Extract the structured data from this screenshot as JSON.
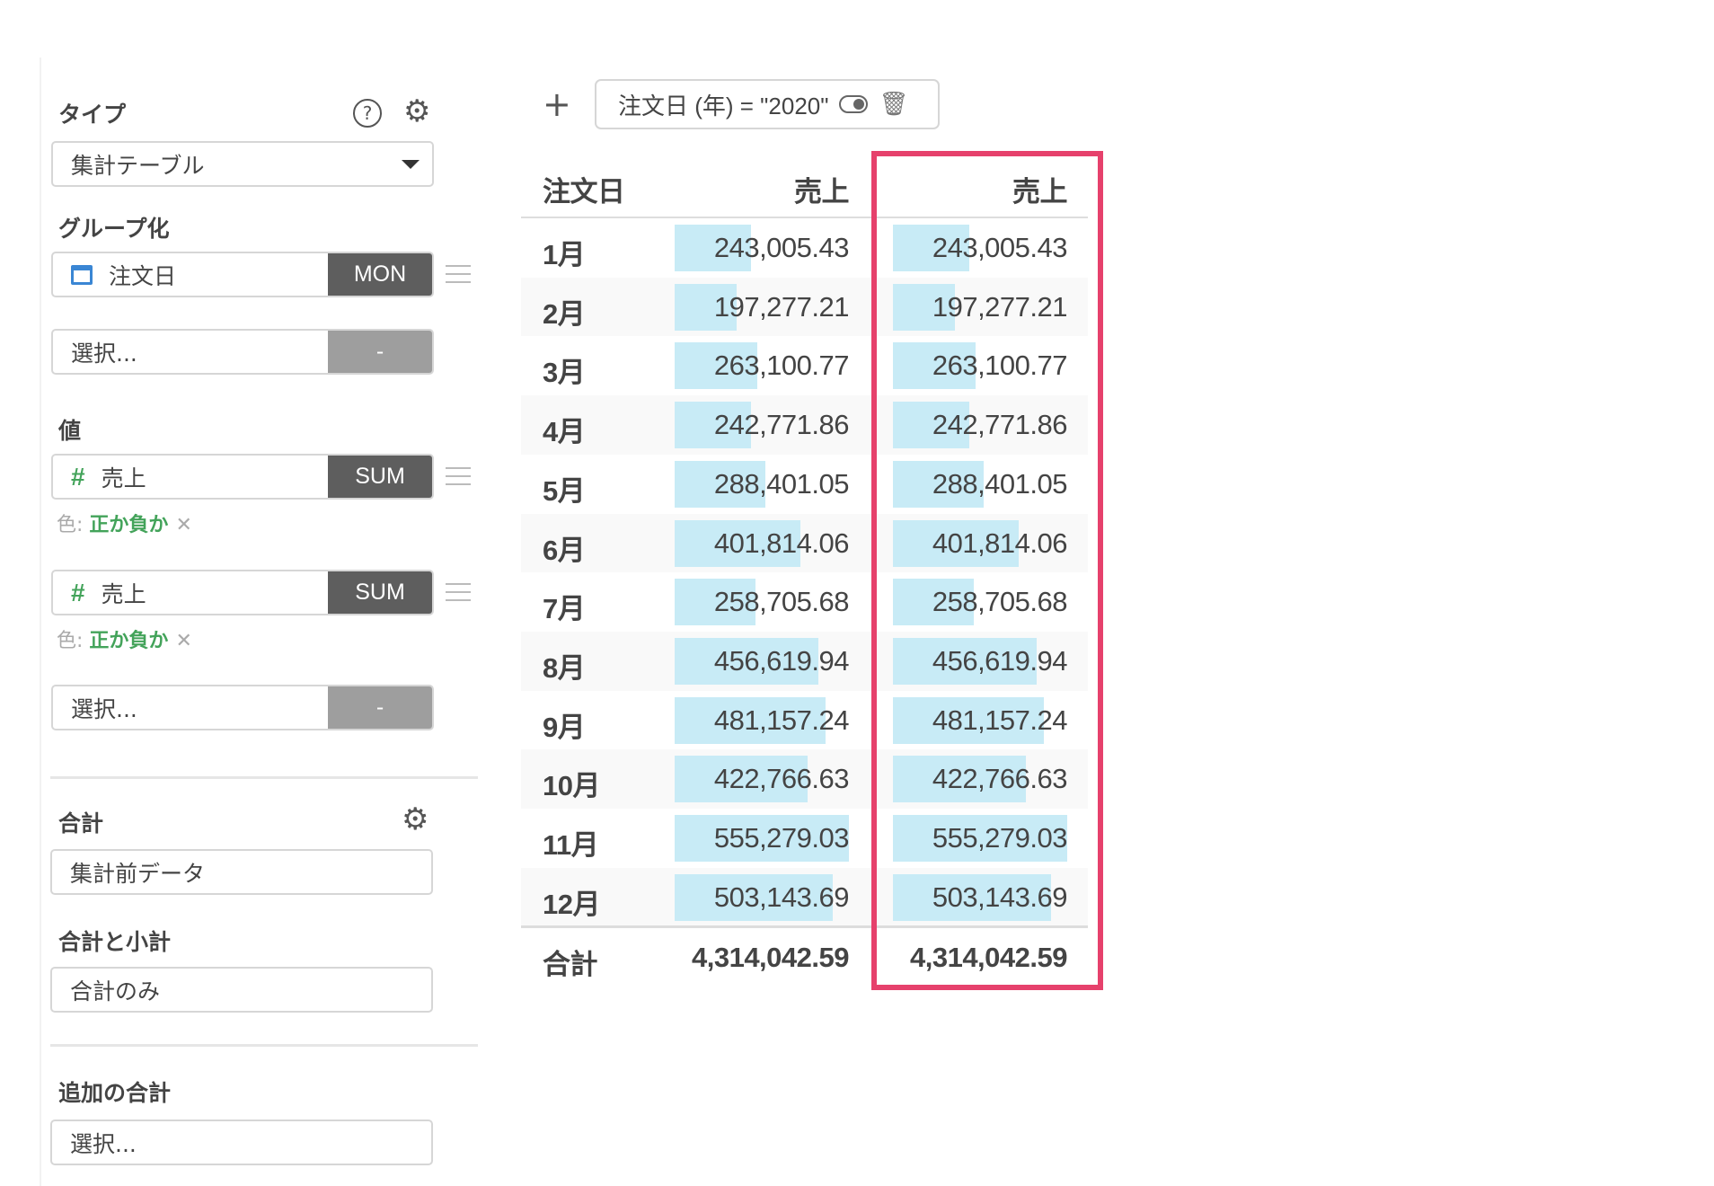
{
  "sidebar": {
    "type": {
      "label": "タイプ",
      "value": "集計テーブル",
      "help_icon": "question-circle",
      "settings_icon": "gear"
    },
    "grouping": {
      "label": "グループ化",
      "field": "注文日",
      "field_icon": "calendar",
      "aggregation": "MON",
      "empty_placeholder": "選択...",
      "empty_button": "-"
    },
    "values": {
      "label": "値",
      "items": [
        {
          "field": "売上",
          "icon": "hash",
          "aggregation": "SUM",
          "color_label": "色:",
          "color_value": "正か負か"
        },
        {
          "field": "売上",
          "icon": "hash",
          "aggregation": "SUM",
          "color_label": "色:",
          "color_value": "正か負か"
        }
      ],
      "empty_placeholder": "選択...",
      "empty_button": "-"
    },
    "total": {
      "label": "合計",
      "value": "集計前データ"
    },
    "total_subtotal": {
      "label": "合計と小計",
      "value": "合計のみ"
    },
    "additional_total": {
      "label": "追加の合計",
      "placeholder": "選択..."
    }
  },
  "filter": {
    "add_label": "+",
    "chip": "注文日 (年) = \"2020\""
  },
  "table": {
    "headers": [
      "注文日",
      "売上",
      "売上"
    ],
    "rows": [
      {
        "label": "1月",
        "value": "243,005.43",
        "n": 243005.43
      },
      {
        "label": "2月",
        "value": "197,277.21",
        "n": 197277.21
      },
      {
        "label": "3月",
        "value": "263,100.77",
        "n": 263100.77
      },
      {
        "label": "4月",
        "value": "242,771.86",
        "n": 242771.86
      },
      {
        "label": "5月",
        "value": "288,401.05",
        "n": 288401.05
      },
      {
        "label": "6月",
        "value": "401,814.06",
        "n": 401814.06
      },
      {
        "label": "7月",
        "value": "258,705.68",
        "n": 258705.68
      },
      {
        "label": "8月",
        "value": "456,619.94",
        "n": 456619.94
      },
      {
        "label": "9月",
        "value": "481,157.24",
        "n": 481157.24
      },
      {
        "label": "10月",
        "value": "422,766.63",
        "n": 422766.63
      },
      {
        "label": "11月",
        "value": "555,279.03",
        "n": 555279.03
      },
      {
        "label": "12月",
        "value": "503,143.69",
        "n": 503143.69
      }
    ],
    "total": {
      "label": "合計",
      "values": [
        "4,314,042.59",
        "4,314,042.59"
      ]
    }
  },
  "colors": {
    "bar": "#c8ebf6",
    "highlight": "#e6416c",
    "positive": "#43a35a",
    "button_dark": "#5e5e5e"
  }
}
